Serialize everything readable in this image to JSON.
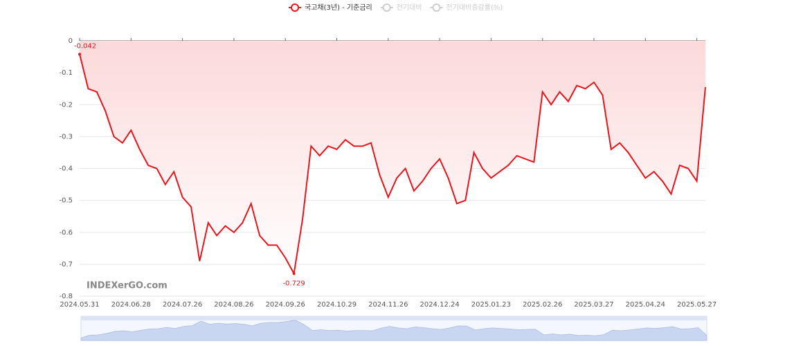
{
  "chart_data": {
    "type": "line",
    "legend": [
      {
        "name": "국고채(3년) - 기준금리",
        "color": "#e8141b",
        "active": true
      },
      {
        "name": "전기대비",
        "color": "#cccccc",
        "active": false
      },
      {
        "name": "전기대비증감률(%)",
        "color": "#cccccc",
        "active": false
      }
    ],
    "watermark": "INDEXerGO.com",
    "categories": [
      "2024.05.31",
      null,
      null,
      null,
      null,
      null,
      "2024.06.28",
      null,
      null,
      null,
      null,
      null,
      "2024.07.26",
      null,
      null,
      null,
      null,
      null,
      "2024.08.26",
      null,
      null,
      null,
      null,
      null,
      "2024.09.26",
      null,
      null,
      null,
      null,
      null,
      "2024.10.29",
      null,
      null,
      null,
      null,
      null,
      "2024.11.26",
      null,
      null,
      null,
      null,
      null,
      "2024.12.24",
      null,
      null,
      null,
      null,
      null,
      "2025.01.23",
      null,
      null,
      null,
      null,
      null,
      "2025.02.26",
      null,
      null,
      null,
      null,
      null,
      "2025.03.27",
      null,
      null,
      null,
      null,
      null,
      "2025.04.24",
      null,
      null,
      null,
      null,
      null,
      "2025.05.27",
      null
    ],
    "series": [
      {
        "name": "국고채(3년) - 기준금리",
        "color": "#e8141b",
        "values": [
          -0.042,
          -0.15,
          -0.16,
          -0.22,
          -0.3,
          -0.32,
          -0.28,
          -0.34,
          -0.39,
          -0.4,
          -0.45,
          -0.41,
          -0.49,
          -0.52,
          -0.69,
          -0.57,
          -0.61,
          -0.58,
          -0.6,
          -0.57,
          -0.51,
          -0.61,
          -0.64,
          -0.64,
          -0.68,
          -0.729,
          -0.56,
          -0.33,
          -0.36,
          -0.33,
          -0.34,
          -0.31,
          -0.33,
          -0.33,
          -0.32,
          -0.42,
          -0.49,
          -0.43,
          -0.4,
          -0.47,
          -0.44,
          -0.4,
          -0.37,
          -0.43,
          -0.51,
          -0.5,
          -0.35,
          -0.4,
          -0.43,
          -0.41,
          -0.39,
          -0.36,
          -0.37,
          -0.38,
          -0.16,
          -0.2,
          -0.16,
          -0.19,
          -0.14,
          -0.15,
          -0.13,
          -0.17,
          -0.34,
          -0.32,
          -0.35,
          -0.39,
          -0.43,
          -0.41,
          -0.44,
          -0.48,
          -0.39,
          -0.4,
          -0.44,
          -0.145
        ],
        "value_labels": [
          "-0.042",
          null,
          null,
          null,
          null,
          null,
          null,
          null,
          null,
          null,
          null,
          null,
          null,
          null,
          null,
          null,
          null,
          null,
          null,
          null,
          null,
          null,
          null,
          null,
          null,
          "-0.729",
          null,
          null,
          null,
          null,
          null,
          null,
          null,
          null,
          null,
          null,
          null,
          null,
          null,
          null,
          null,
          null,
          null,
          null,
          null,
          null,
          null,
          null,
          null,
          null,
          null,
          null,
          null,
          null,
          null,
          null,
          null,
          null,
          null,
          null,
          null,
          null,
          null,
          null,
          null,
          null,
          null,
          null,
          null,
          null,
          null,
          null,
          null,
          null
        ]
      }
    ],
    "ylim": [
      -0.8,
      0
    ],
    "yticks": [
      0,
      -0.1,
      -0.2,
      -0.3,
      -0.4,
      -0.5,
      -0.6,
      -0.7,
      -0.8
    ],
    "grid": true
  }
}
